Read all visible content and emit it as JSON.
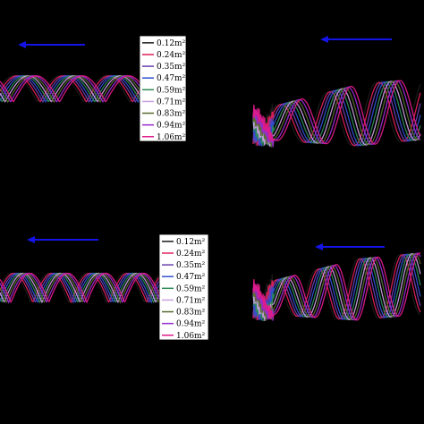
{
  "colors": {
    "background": "#000000",
    "arrow": "#1414e6"
  },
  "chart_data": [
    {
      "type": "line",
      "panel": "top-left",
      "arrow_direction": "left",
      "legend": "right-inside",
      "series": [
        {
          "name": "0.12m²",
          "color": "#1a1a1a",
          "phase": 0.0
        },
        {
          "name": "0.24m²",
          "color": "#e0205a",
          "phase": 0.06
        },
        {
          "name": "0.35m²",
          "color": "#6a3fb0",
          "phase": 0.12
        },
        {
          "name": "0.47m²",
          "color": "#3050d0",
          "phase": 0.18
        },
        {
          "name": "0.59m²",
          "color": "#2e8b57",
          "phase": 0.24
        },
        {
          "name": "0.71m²",
          "color": "#c8a0e0",
          "phase": 0.3
        },
        {
          "name": "0.83m²",
          "color": "#556b2f",
          "phase": 0.36
        },
        {
          "name": "0.94m²",
          "color": "#9a2bd0",
          "phase": 0.42
        },
        {
          "name": "1.06m²",
          "color": "#e01a8a",
          "phase": 0.48
        }
      ]
    },
    {
      "type": "line",
      "panel": "top-right",
      "arrow_direction": "left",
      "legend": "none",
      "series": [
        {
          "color": "#1a1a1a",
          "phase": 0.0
        },
        {
          "color": "#e0205a",
          "phase": 0.06
        },
        {
          "color": "#6a3fb0",
          "phase": 0.12
        },
        {
          "color": "#3050d0",
          "phase": 0.18
        },
        {
          "color": "#2e8b57",
          "phase": 0.24
        },
        {
          "color": "#c8a0e0",
          "phase": 0.3
        },
        {
          "color": "#556b2f",
          "phase": 0.36
        },
        {
          "color": "#9a2bd0",
          "phase": 0.42
        },
        {
          "color": "#e01a8a",
          "phase": 0.48
        }
      ]
    },
    {
      "type": "line",
      "panel": "bottom-left",
      "arrow_direction": "left",
      "legend": "right-inside",
      "series": [
        {
          "name": "0.12m²",
          "color": "#1a1a1a",
          "phase": 0.0
        },
        {
          "name": "0.24m²",
          "color": "#e0205a",
          "phase": 0.06
        },
        {
          "name": "0.35m²",
          "color": "#6a3fb0",
          "phase": 0.12
        },
        {
          "name": "0.47m²",
          "color": "#3050d0",
          "phase": 0.18
        },
        {
          "name": "0.59m²",
          "color": "#2e8b57",
          "phase": 0.24
        },
        {
          "name": "0.71m²",
          "color": "#c8a0e0",
          "phase": 0.3
        },
        {
          "name": "0.83m²",
          "color": "#556b2f",
          "phase": 0.36
        },
        {
          "name": "0.94m²",
          "color": "#9a2bd0",
          "phase": 0.42
        },
        {
          "name": "1.06m²",
          "color": "#e01a8a",
          "phase": 0.48
        }
      ]
    },
    {
      "type": "line",
      "panel": "bottom-right",
      "arrow_direction": "left",
      "legend": "none",
      "series": [
        {
          "color": "#1a1a1a",
          "phase": 0.0
        },
        {
          "color": "#e0205a",
          "phase": 0.06
        },
        {
          "color": "#6a3fb0",
          "phase": 0.12
        },
        {
          "color": "#3050d0",
          "phase": 0.18
        },
        {
          "color": "#2e8b57",
          "phase": 0.24
        },
        {
          "color": "#c8a0e0",
          "phase": 0.3
        },
        {
          "color": "#556b2f",
          "phase": 0.36
        },
        {
          "color": "#9a2bd0",
          "phase": 0.42
        },
        {
          "color": "#e01a8a",
          "phase": 0.48
        }
      ]
    }
  ]
}
